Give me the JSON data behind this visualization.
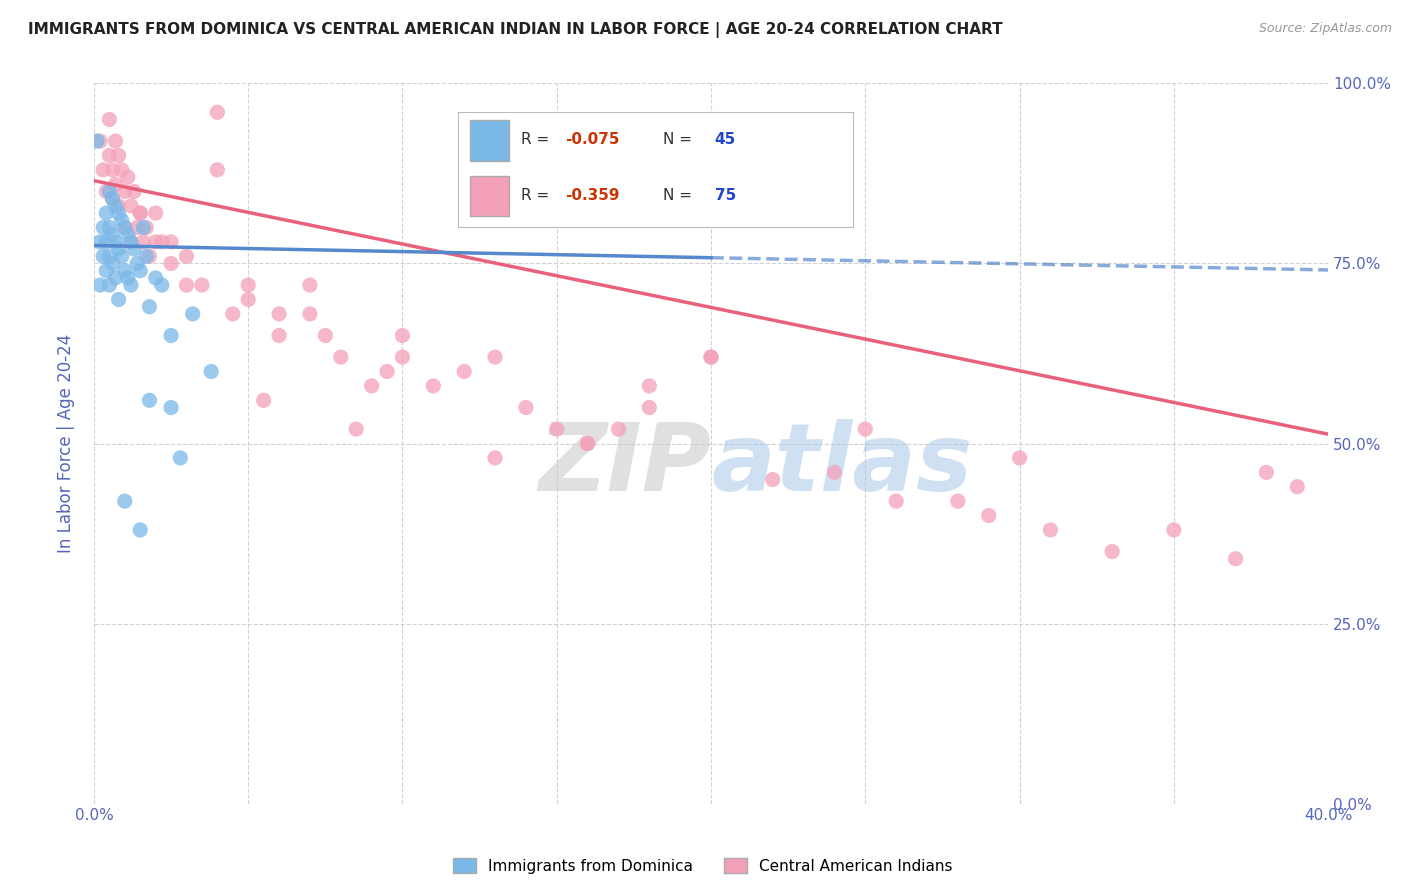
{
  "title": "IMMIGRANTS FROM DOMINICA VS CENTRAL AMERICAN INDIAN IN LABOR FORCE | AGE 20-24 CORRELATION CHART",
  "source_text": "Source: ZipAtlas.com",
  "ylabel": "In Labor Force | Age 20-24",
  "xlim": [
    0.0,
    0.4
  ],
  "ylim": [
    0.0,
    1.0
  ],
  "x_ticks": [
    0.0,
    0.05,
    0.1,
    0.15,
    0.2,
    0.25,
    0.3,
    0.35,
    0.4
  ],
  "y_ticks": [
    0.0,
    0.25,
    0.5,
    0.75,
    1.0
  ],
  "blue_color": "#7ab8e8",
  "pink_color": "#f4a0b8",
  "blue_line_color": "#5588cc",
  "pink_line_color": "#e8607a",
  "R_blue": -0.075,
  "N_blue": 45,
  "R_pink": -0.359,
  "N_pink": 75,
  "legend1_label": "Immigrants from Dominica",
  "legend2_label": "Central American Indians",
  "background_color": "#ffffff",
  "grid_color": "#cccccc",
  "title_color": "#222222",
  "axis_label_color": "#5566bb",
  "tick_label_color": "#5566bb",
  "blue_intercept": 0.775,
  "blue_slope": -0.085,
  "pink_intercept": 0.865,
  "pink_slope": -0.88,
  "blue_scatter_x": [
    0.001,
    0.002,
    0.002,
    0.003,
    0.003,
    0.004,
    0.004,
    0.004,
    0.005,
    0.005,
    0.005,
    0.005,
    0.006,
    0.006,
    0.006,
    0.007,
    0.007,
    0.007,
    0.008,
    0.008,
    0.008,
    0.009,
    0.009,
    0.01,
    0.01,
    0.011,
    0.011,
    0.012,
    0.012,
    0.013,
    0.014,
    0.015,
    0.016,
    0.017,
    0.018,
    0.02,
    0.022,
    0.025,
    0.028,
    0.032,
    0.018,
    0.025,
    0.038,
    0.01,
    0.015
  ],
  "blue_scatter_y": [
    0.92,
    0.78,
    0.72,
    0.8,
    0.76,
    0.82,
    0.78,
    0.74,
    0.85,
    0.8,
    0.76,
    0.72,
    0.84,
    0.79,
    0.75,
    0.83,
    0.78,
    0.73,
    0.82,
    0.77,
    0.7,
    0.81,
    0.76,
    0.8,
    0.74,
    0.79,
    0.73,
    0.78,
    0.72,
    0.77,
    0.75,
    0.74,
    0.8,
    0.76,
    0.69,
    0.73,
    0.72,
    0.55,
    0.48,
    0.68,
    0.56,
    0.65,
    0.6,
    0.42,
    0.38
  ],
  "pink_scatter_x": [
    0.002,
    0.003,
    0.004,
    0.005,
    0.005,
    0.006,
    0.006,
    0.007,
    0.007,
    0.008,
    0.008,
    0.009,
    0.01,
    0.01,
    0.011,
    0.012,
    0.012,
    0.013,
    0.014,
    0.015,
    0.016,
    0.017,
    0.018,
    0.02,
    0.022,
    0.025,
    0.03,
    0.035,
    0.04,
    0.05,
    0.06,
    0.07,
    0.08,
    0.09,
    0.1,
    0.12,
    0.14,
    0.16,
    0.18,
    0.2,
    0.04,
    0.07,
    0.13,
    0.25,
    0.3,
    0.025,
    0.045,
    0.075,
    0.11,
    0.15,
    0.2,
    0.28,
    0.35,
    0.39,
    0.38,
    0.06,
    0.1,
    0.16,
    0.22,
    0.29,
    0.03,
    0.055,
    0.085,
    0.13,
    0.18,
    0.24,
    0.31,
    0.37,
    0.05,
    0.095,
    0.17,
    0.26,
    0.33,
    0.015,
    0.02
  ],
  "pink_scatter_y": [
    0.92,
    0.88,
    0.85,
    0.95,
    0.9,
    0.88,
    0.84,
    0.92,
    0.86,
    0.9,
    0.83,
    0.88,
    0.85,
    0.8,
    0.87,
    0.83,
    0.78,
    0.85,
    0.8,
    0.82,
    0.78,
    0.8,
    0.76,
    0.82,
    0.78,
    0.75,
    0.76,
    0.72,
    0.96,
    0.7,
    0.65,
    0.68,
    0.62,
    0.58,
    0.65,
    0.6,
    0.55,
    0.5,
    0.58,
    0.62,
    0.88,
    0.72,
    0.62,
    0.52,
    0.48,
    0.78,
    0.68,
    0.65,
    0.58,
    0.52,
    0.62,
    0.42,
    0.38,
    0.44,
    0.46,
    0.68,
    0.62,
    0.5,
    0.45,
    0.4,
    0.72,
    0.56,
    0.52,
    0.48,
    0.55,
    0.46,
    0.38,
    0.34,
    0.72,
    0.6,
    0.52,
    0.42,
    0.35,
    0.82,
    0.78
  ]
}
